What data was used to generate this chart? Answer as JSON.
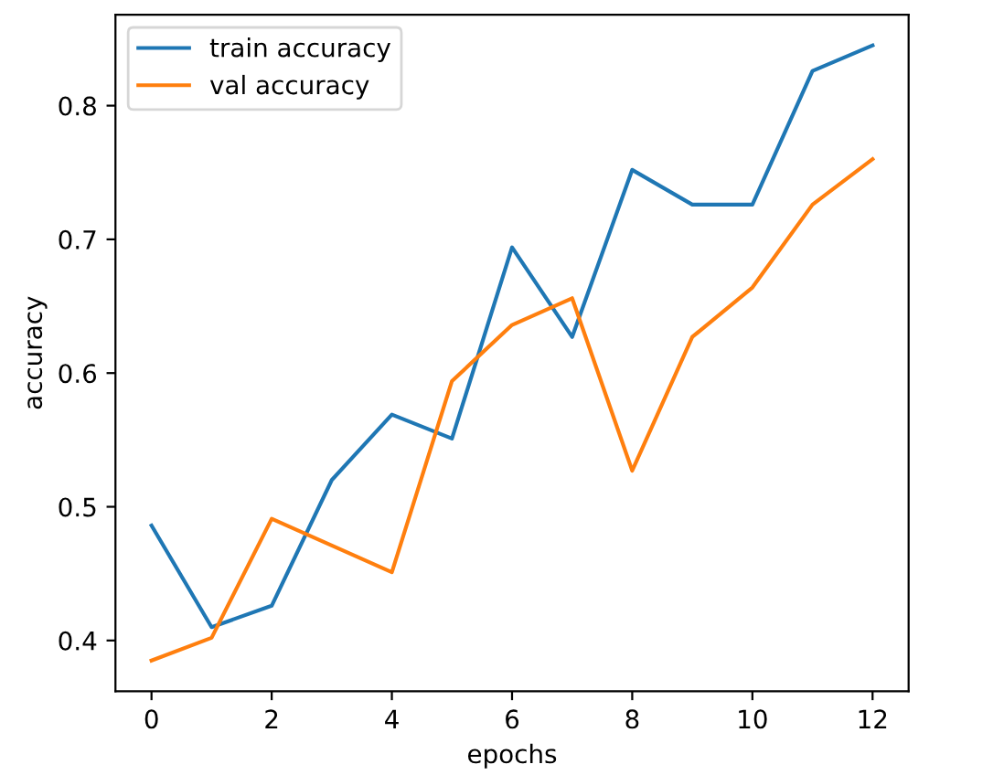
{
  "chart_data": {
    "type": "line",
    "xlabel": "epochs",
    "ylabel": "accuracy",
    "x": [
      0,
      1,
      2,
      3,
      4,
      5,
      6,
      7,
      8,
      9,
      10,
      11,
      12
    ],
    "series": [
      {
        "name": "train accuracy",
        "color": "#1f77b4",
        "values": [
          0.486,
          0.41,
          0.426,
          0.52,
          0.569,
          0.551,
          0.694,
          0.627,
          0.752,
          0.726,
          0.726,
          0.826,
          0.845
        ]
      },
      {
        "name": "val accuracy",
        "color": "#ff7f0e",
        "values": [
          0.385,
          0.402,
          0.491,
          0.471,
          0.451,
          0.594,
          0.636,
          0.656,
          0.527,
          0.627,
          0.664,
          0.726,
          0.76
        ]
      }
    ],
    "xlim": [
      -0.6,
      12.6
    ],
    "ylim": [
      0.362,
      0.868
    ],
    "xticks": [
      0,
      2,
      4,
      6,
      8,
      10,
      12
    ],
    "yticks": [
      0.4,
      0.5,
      0.6,
      0.7,
      0.8
    ],
    "legend": "top left",
    "grid": false,
    "marker": "none",
    "line_style": "solid"
  }
}
